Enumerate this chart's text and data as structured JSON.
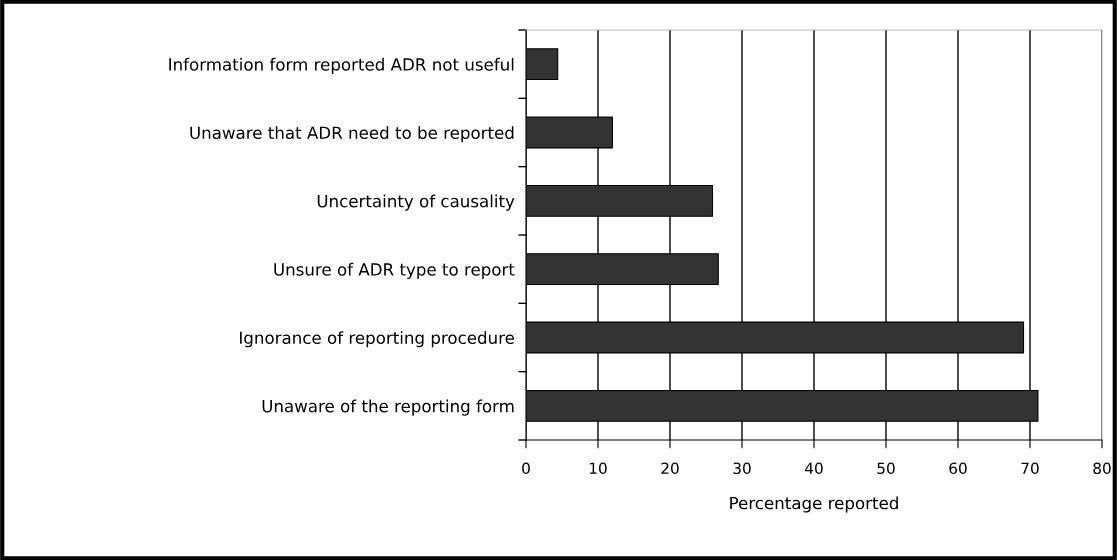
{
  "chart_data": {
    "type": "bar",
    "orientation": "horizontal",
    "xlabel": "Percentage reported",
    "categories": [
      "Information form reported ADR not useful",
      "Unaware that ADR need to be reported",
      "Uncertainty of causality",
      "Unsure of ADR type to report",
      "Ignorance of reporting procedure",
      "Unaware of the reporting form"
    ],
    "values": [
      4.4,
      12.0,
      25.9,
      26.7,
      69.1,
      71.1
    ],
    "color": "#333333",
    "xlim": [
      0,
      80
    ],
    "xticks": [
      0,
      10,
      20,
      30,
      40,
      50,
      60,
      70,
      80
    ],
    "grid": "x",
    "legend": false
  }
}
